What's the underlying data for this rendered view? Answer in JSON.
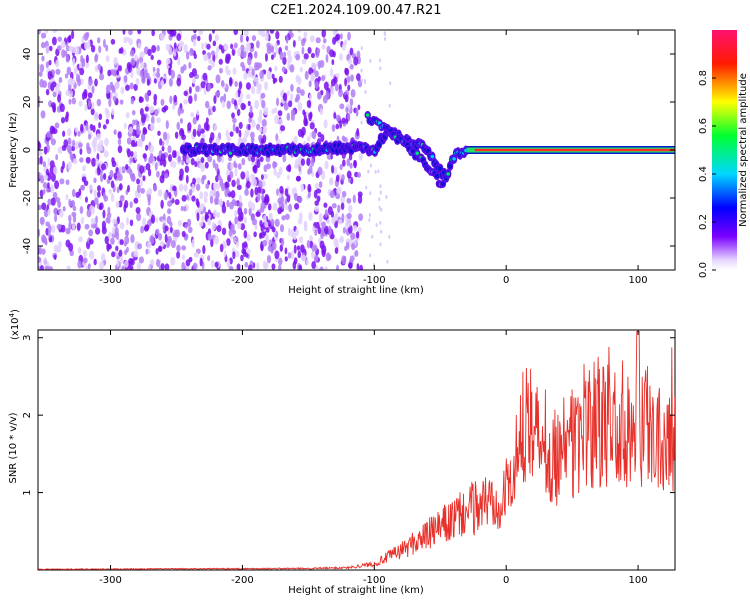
{
  "title": "C2E1.2024.109.00.47.R21",
  "chart_data": [
    {
      "type": "heatmap",
      "xlabel": "Height of straight line (km)",
      "ylabel": "Frequency (Hz)",
      "xlim": [
        -355,
        128
      ],
      "ylim": [
        -50,
        50
      ],
      "x_ticks": [
        -300,
        -200,
        -100,
        0,
        100
      ],
      "y_ticks": [
        -40,
        -20,
        0,
        20,
        40
      ],
      "noise_region_x": [
        -355,
        -110
      ],
      "signal_track": {
        "x": [
          -245,
          -200,
          -150,
          -120,
          -100,
          -90,
          -80,
          -70,
          -60,
          -50,
          -45,
          -40,
          -30,
          -20,
          0,
          20,
          50,
          100,
          128
        ],
        "y": [
          0,
          0,
          0,
          1,
          0,
          8,
          5,
          3,
          0,
          -8,
          -12,
          -3,
          0,
          0,
          2,
          0,
          0,
          0,
          0
        ]
      },
      "secondary_track": {
        "x": [
          -105,
          -95,
          -85,
          -75,
          -65,
          -55,
          -48
        ],
        "y": [
          14,
          10,
          6,
          2,
          -4,
          -10,
          -15
        ]
      },
      "colorbar": {
        "label": "Normalized spectral amplitude",
        "range": [
          0,
          1
        ],
        "ticks": [
          0.0,
          0.2,
          0.4,
          0.6,
          0.8
        ],
        "colors": [
          "#ffffff",
          "#6a00ff",
          "#0000ff",
          "#00e5ff",
          "#00ff40",
          "#ffff00",
          "#ff0000",
          "#ff1070"
        ]
      }
    },
    {
      "type": "line",
      "xlabel": "Height of straight line (km)",
      "ylabel": "SNR (10 * v/v)",
      "scale_label": "(x10",
      "scale_exp": "4",
      "scale_close": ")",
      "xlim": [
        -355,
        128
      ],
      "ylim": [
        0,
        3.1
      ],
      "x_ticks": [
        -300,
        -200,
        -100,
        0,
        100
      ],
      "y_ticks": [
        1,
        2,
        3
      ],
      "color": "#e8302a",
      "envelope": {
        "x": [
          -355,
          -150,
          -120,
          -100,
          -80,
          -60,
          -40,
          -20,
          0,
          10,
          17,
          25,
          40,
          60,
          80,
          100,
          110,
          128
        ],
        "y": [
          0.01,
          0.02,
          0.03,
          0.08,
          0.25,
          0.45,
          0.65,
          0.85,
          1.0,
          1.45,
          2.35,
          1.55,
          1.5,
          1.75,
          1.85,
          1.95,
          1.8,
          1.8
        ]
      }
    }
  ]
}
